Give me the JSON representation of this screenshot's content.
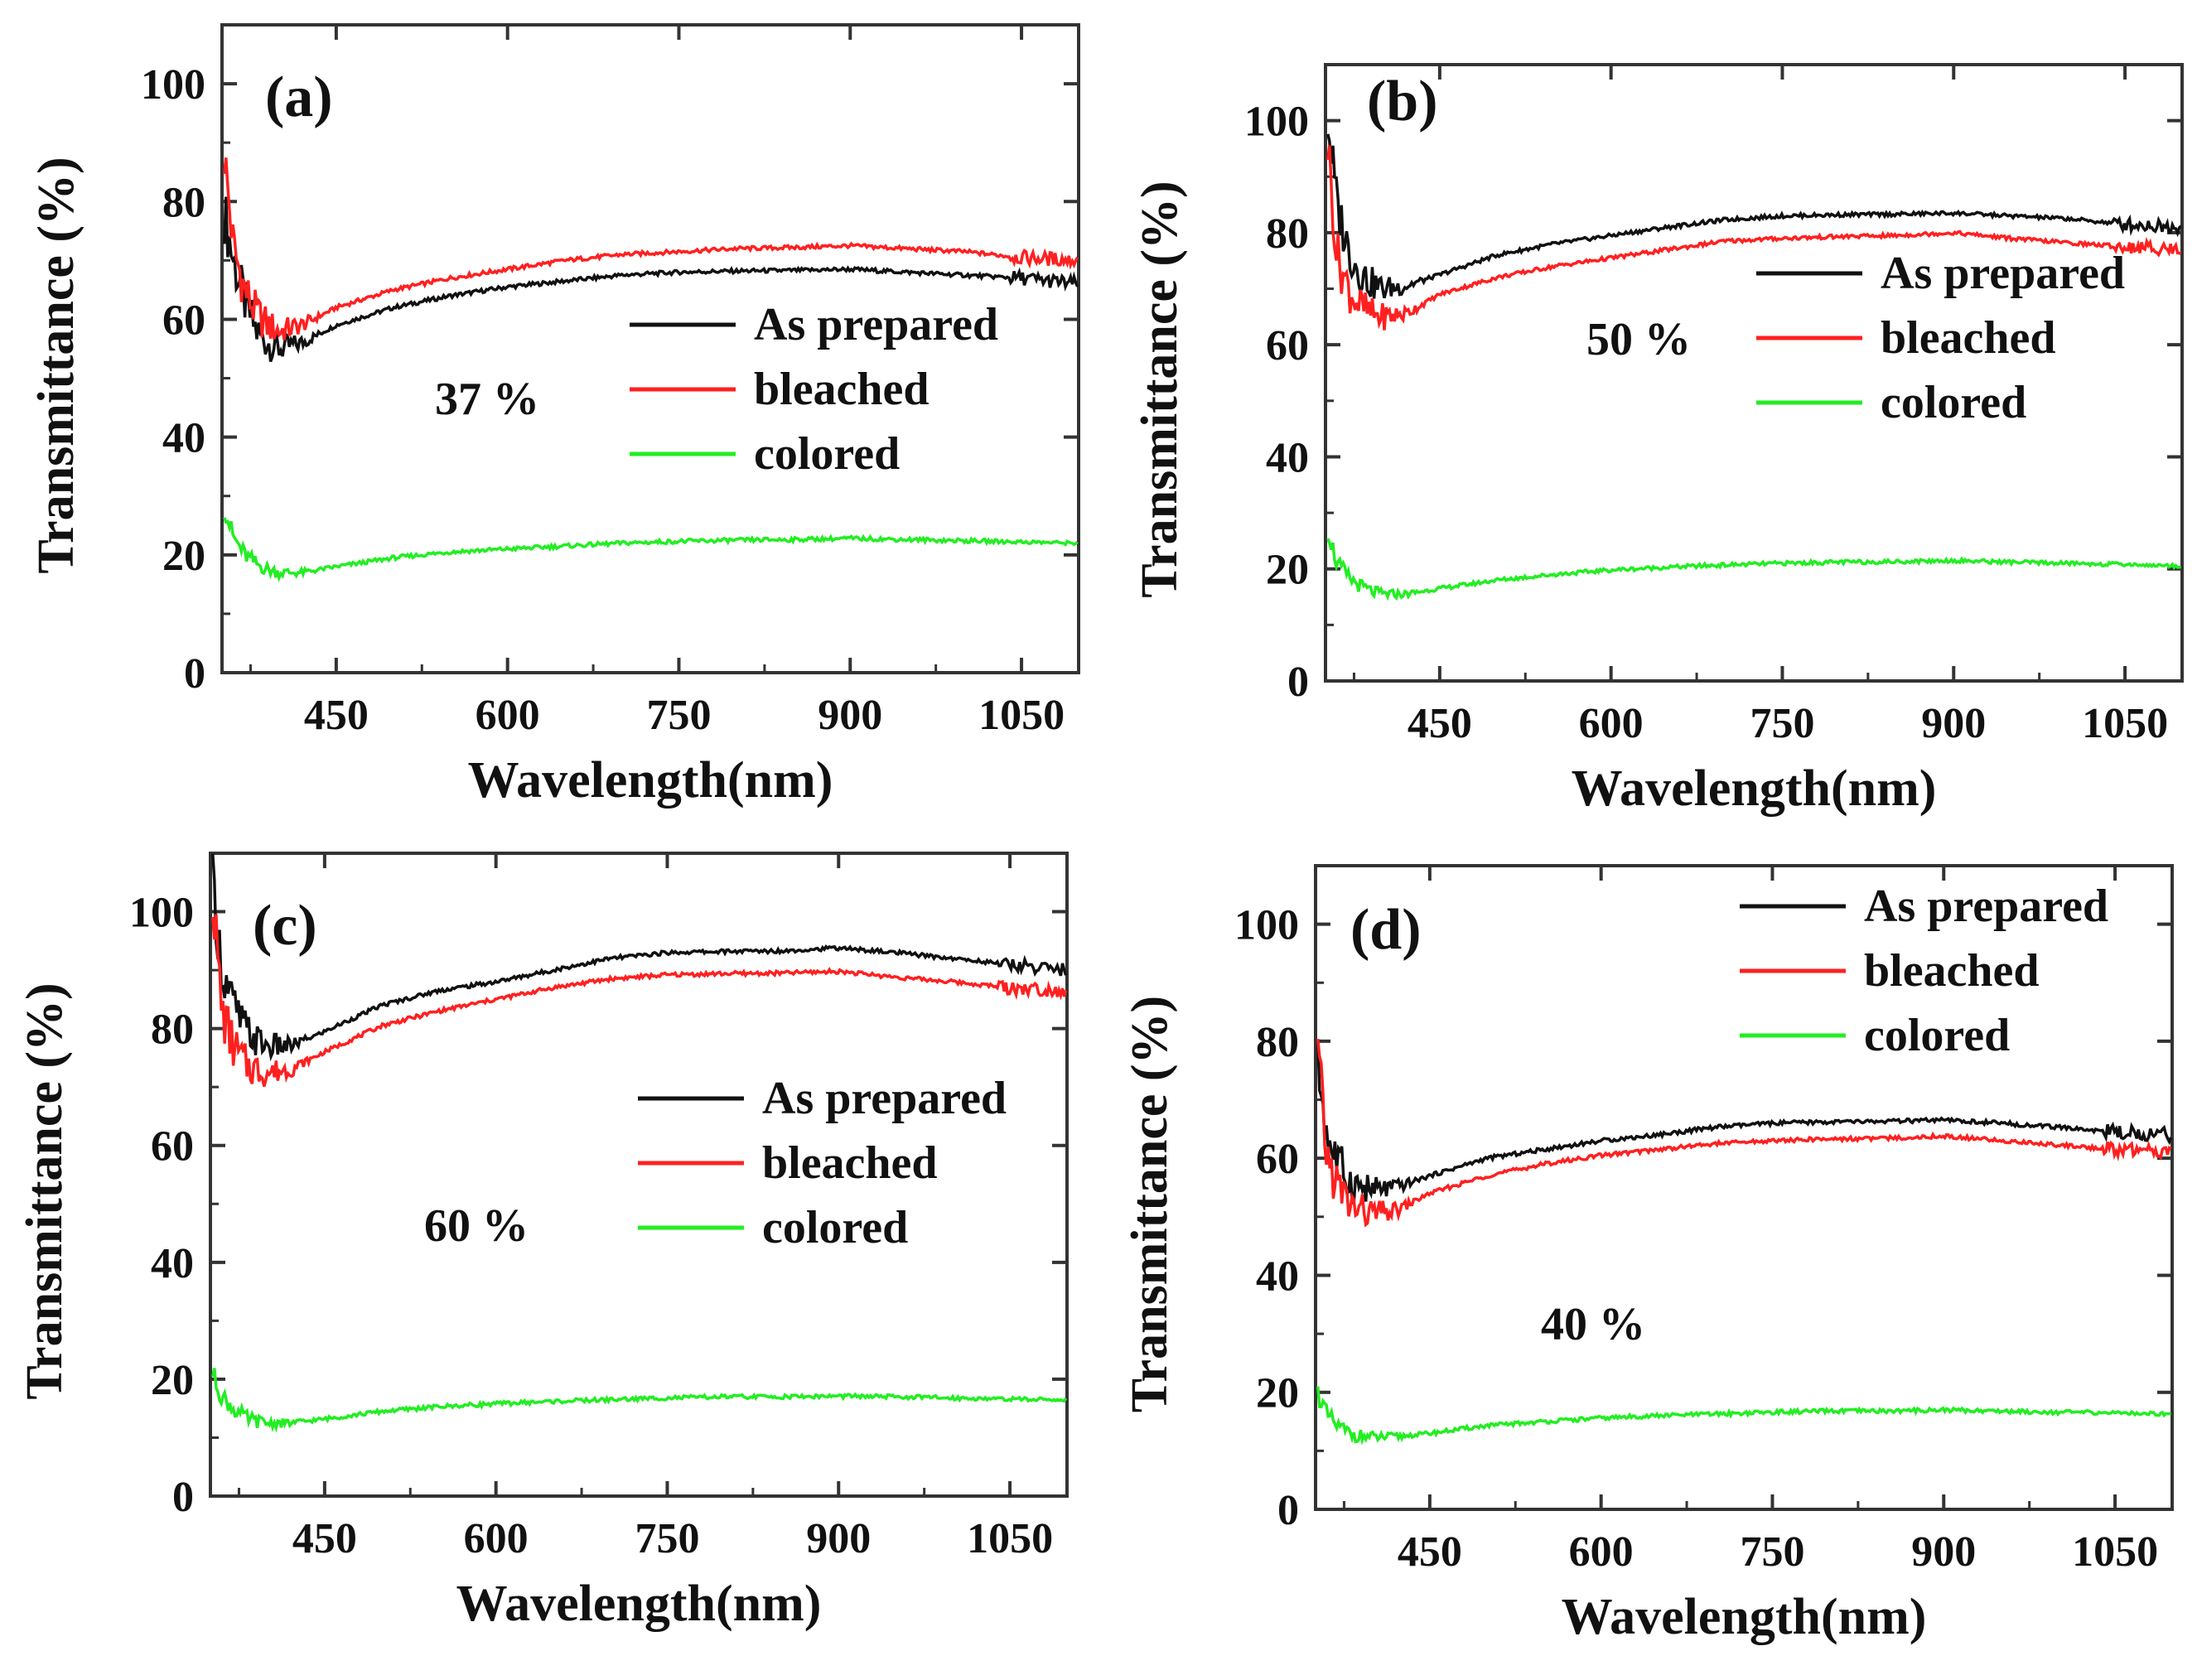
{
  "figure": {
    "description_title": ""
  },
  "colors": {
    "as_prepared": "#111111",
    "bleached": "#ff2020",
    "colored": "#22ee22",
    "axis": "#333333"
  },
  "chart_data": [
    {
      "type": "line",
      "panel_label": "(a)",
      "annotation": "37 %",
      "xlabel": "Wavelength(nm)",
      "ylabel": "Transmittance (%)",
      "xlim": [
        350,
        1100
      ],
      "ylim": [
        0,
        110
      ],
      "xticks": [
        "450",
        "600",
        "750",
        "900",
        "1050"
      ],
      "yticks": [
        "0",
        "20",
        "40",
        "60",
        "80",
        "100"
      ],
      "legend": [
        "As prepared",
        "bleached",
        "colored"
      ],
      "legend_position": "center-right",
      "series": [
        {
          "name": "As prepared",
          "x": [
            352,
            360,
            370,
            380,
            390,
            400,
            420,
            450,
            500,
            550,
            600,
            650,
            700,
            750,
            800,
            850,
            900,
            950,
            1000,
            1050,
            1100
          ],
          "values": [
            78,
            70,
            63,
            58,
            56,
            55,
            56,
            59,
            62,
            64,
            65.5,
            66.5,
            67.5,
            68,
            68.2,
            68.3,
            68.5,
            68,
            67.5,
            67,
            66
          ]
        },
        {
          "name": "bleached",
          "x": [
            352,
            360,
            370,
            380,
            390,
            400,
            420,
            450,
            500,
            550,
            600,
            650,
            700,
            750,
            800,
            850,
            900,
            950,
            1000,
            1050,
            1100
          ],
          "values": [
            88,
            72,
            65,
            61,
            59,
            58,
            59,
            62,
            65,
            67,
            68.5,
            70,
            71,
            71.5,
            72,
            72.2,
            72.5,
            72,
            71.5,
            70.5,
            70
          ]
        },
        {
          "name": "colored",
          "x": [
            352,
            360,
            370,
            380,
            390,
            400,
            420,
            450,
            500,
            550,
            600,
            650,
            700,
            750,
            800,
            850,
            900,
            950,
            1000,
            1050,
            1100
          ],
          "values": [
            28,
            23,
            20,
            18.5,
            17.5,
            17,
            17,
            18,
            19.5,
            20.5,
            21,
            21.5,
            22,
            22.3,
            22.5,
            22.6,
            22.8,
            22.6,
            22.4,
            22.2,
            22
          ]
        }
      ]
    },
    {
      "type": "line",
      "panel_label": "(b)",
      "annotation": "50 %",
      "xlabel": "Wavelength(nm)",
      "ylabel": "Transmittance (%)",
      "xlim": [
        350,
        1100
      ],
      "ylim": [
        0,
        110
      ],
      "xticks": [
        "450",
        "600",
        "750",
        "900",
        "1050"
      ],
      "yticks": [
        "0",
        "20",
        "40",
        "60",
        "80",
        "100"
      ],
      "legend": [
        "As prepared",
        "bleached",
        "colored"
      ],
      "legend_position": "center-right",
      "series": [
        {
          "name": "As prepared",
          "x": [
            352,
            360,
            370,
            380,
            390,
            400,
            420,
            450,
            500,
            550,
            600,
            650,
            700,
            750,
            800,
            850,
            900,
            950,
            1000,
            1050,
            1100
          ],
          "values": [
            100,
            85,
            77,
            73,
            71,
            70,
            70.5,
            72.5,
            76,
            78,
            79.5,
            81,
            82.3,
            83,
            83.2,
            83.3,
            83.5,
            83,
            82.5,
            81.5,
            81
          ]
        },
        {
          "name": "bleached",
          "x": [
            352,
            360,
            370,
            380,
            390,
            400,
            420,
            450,
            500,
            550,
            600,
            650,
            700,
            750,
            800,
            850,
            900,
            950,
            1000,
            1050,
            1100
          ],
          "values": [
            96,
            76,
            70,
            67,
            65.5,
            65,
            65.5,
            69,
            72,
            74,
            75.5,
            77,
            78.5,
            79,
            79.3,
            79.5,
            80,
            79,
            78.2,
            77.5,
            77
          ]
        },
        {
          "name": "colored",
          "x": [
            352,
            360,
            370,
            380,
            390,
            400,
            420,
            450,
            500,
            550,
            600,
            650,
            700,
            750,
            800,
            850,
            900,
            950,
            1000,
            1050,
            1100
          ],
          "values": [
            27,
            21,
            18.5,
            17,
            16,
            15.5,
            15.5,
            16.5,
            18,
            19,
            19.8,
            20.3,
            20.7,
            21,
            21.2,
            21.3,
            21.5,
            21.2,
            21,
            20.8,
            20.5
          ]
        }
      ]
    },
    {
      "type": "line",
      "panel_label": "(c)",
      "annotation": "60 %",
      "xlabel": "Wavelength(nm)",
      "ylabel": "Transmittance (%)",
      "xlim": [
        350,
        1100
      ],
      "ylim": [
        0,
        110
      ],
      "xticks": [
        "450",
        "600",
        "750",
        "900",
        "1050"
      ],
      "yticks": [
        "0",
        "20",
        "40",
        "60",
        "80",
        "100"
      ],
      "legend": [
        "As prepared",
        "bleached",
        "colored"
      ],
      "legend_position": "center-right",
      "series": [
        {
          "name": "As prepared",
          "x": [
            352,
            360,
            370,
            380,
            390,
            400,
            420,
            450,
            500,
            550,
            600,
            650,
            700,
            750,
            800,
            850,
            900,
            950,
            1000,
            1050,
            1100
          ],
          "values": [
            105,
            90,
            84,
            80,
            78,
            77,
            77,
            79.5,
            84,
            86.5,
            88,
            90,
            92,
            93,
            93.2,
            93.3,
            93.8,
            93,
            92,
            91,
            90
          ]
        },
        {
          "name": "bleached",
          "x": [
            352,
            360,
            370,
            380,
            390,
            400,
            420,
            450,
            500,
            550,
            600,
            650,
            700,
            750,
            800,
            850,
            900,
            950,
            1000,
            1050,
            1100
          ],
          "values": [
            103,
            83,
            77,
            74,
            73,
            72.5,
            73,
            76,
            80.5,
            83,
            85,
            87,
            88.5,
            89.2,
            89.4,
            89.5,
            89.8,
            88.8,
            88,
            87,
            86.5
          ]
        },
        {
          "name": "colored",
          "x": [
            352,
            360,
            370,
            380,
            390,
            400,
            420,
            450,
            500,
            550,
            600,
            650,
            700,
            750,
            800,
            850,
            900,
            950,
            1000,
            1050,
            1100
          ],
          "values": [
            21,
            17,
            15,
            13.5,
            12.8,
            12.5,
            12.5,
            13.2,
            14.5,
            15.3,
            15.8,
            16.2,
            16.5,
            16.8,
            17,
            17,
            17.1,
            17,
            16.8,
            16.6,
            16.5
          ]
        }
      ]
    },
    {
      "type": "line",
      "panel_label": "(d)",
      "annotation": "40 %",
      "xlabel": "Wavelength(nm)",
      "ylabel": "Transmittance (%)",
      "xlim": [
        350,
        1100
      ],
      "ylim": [
        0,
        110
      ],
      "xticks": [
        "450",
        "600",
        "750",
        "900",
        "1050"
      ],
      "yticks": [
        "0",
        "20",
        "40",
        "60",
        "80",
        "100"
      ],
      "legend": [
        "As prepared",
        "bleached",
        "colored"
      ],
      "legend_position": "top-right",
      "series": [
        {
          "name": "As prepared",
          "x": [
            352,
            360,
            370,
            380,
            390,
            400,
            420,
            450,
            500,
            550,
            600,
            650,
            700,
            750,
            800,
            850,
            900,
            950,
            1000,
            1050,
            1100
          ],
          "values": [
            76,
            64,
            59,
            56,
            55,
            54.5,
            55,
            57,
            60,
            61.5,
            63,
            64,
            65.3,
            66,
            66.2,
            66.3,
            66.5,
            66,
            65.3,
            64.5,
            64
          ]
        },
        {
          "name": "bleached",
          "x": [
            352,
            360,
            370,
            380,
            390,
            400,
            420,
            450,
            500,
            550,
            600,
            650,
            700,
            750,
            800,
            850,
            900,
            950,
            1000,
            1050,
            1100
          ],
          "values": [
            78,
            60,
            55,
            52,
            51,
            50.5,
            51,
            54,
            57,
            59,
            60.5,
            61.5,
            62.5,
            63,
            63.3,
            63.4,
            63.8,
            63,
            62.3,
            61.5,
            61
          ]
        },
        {
          "name": "colored",
          "x": [
            352,
            360,
            370,
            380,
            390,
            400,
            420,
            450,
            500,
            550,
            600,
            650,
            700,
            750,
            800,
            850,
            900,
            950,
            1000,
            1050,
            1100
          ],
          "values": [
            20,
            16,
            14,
            13,
            12.5,
            12.3,
            12.4,
            13,
            14.3,
            15,
            15.6,
            16,
            16.3,
            16.6,
            16.8,
            16.8,
            17,
            16.8,
            16.6,
            16.5,
            16.3
          ]
        }
      ]
    }
  ]
}
